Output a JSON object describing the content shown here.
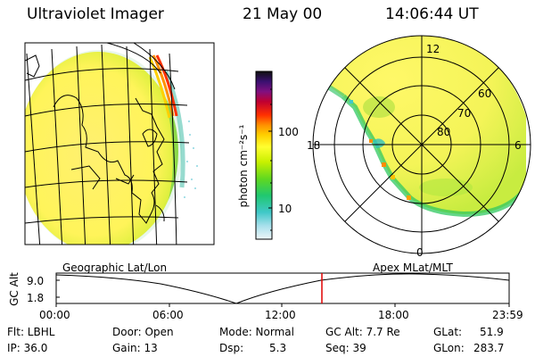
{
  "header": {
    "instrument": "Ultraviolet Imager",
    "date": "21 May 00",
    "time": "14:06:44 UT"
  },
  "colorbar": {
    "unit_label": "photon cm⁻²s⁻¹",
    "tick_labels": [
      "100",
      "10"
    ],
    "scale": "log",
    "colors": [
      "#101010",
      "#3a1060",
      "#7a1090",
      "#c01030",
      "#ff2000",
      "#ff8c00",
      "#ffd000",
      "#ffff40",
      "#c8f000",
      "#60d800",
      "#20c860",
      "#30c0c0",
      "#a0e0f0",
      "#e8f4f8"
    ]
  },
  "polar_plot": {
    "mlt_labels": [
      "12",
      "18",
      "6",
      "0"
    ],
    "mlat_labels": [
      "60",
      "70",
      "80"
    ]
  },
  "altitude_strip": {
    "axis_title": "GC Alt",
    "y_labels": [
      "9.0",
      "1.8"
    ],
    "left_caption": "Geographic Lat/Lon",
    "right_caption": "Apex MLat/MLT",
    "x_labels": [
      "00:00",
      "06:00",
      "12:00",
      "18:00",
      "23:59"
    ],
    "current_marker_color": "#e00000"
  },
  "info": {
    "filter": "Flt: LBHL",
    "ip": "IP: 36.0",
    "door": "Door: Open",
    "gain": "Gain: 13",
    "mode": "Mode: Normal",
    "dsp_label": "Dsp:",
    "dsp_value": "5.3",
    "gc_alt": "GC Alt: 7.7 Re",
    "seq": "Seq: 39",
    "glat_label": "GLat:",
    "glat_value": "51.9",
    "glon_label": "GLon:",
    "glon_value": "283.7"
  }
}
